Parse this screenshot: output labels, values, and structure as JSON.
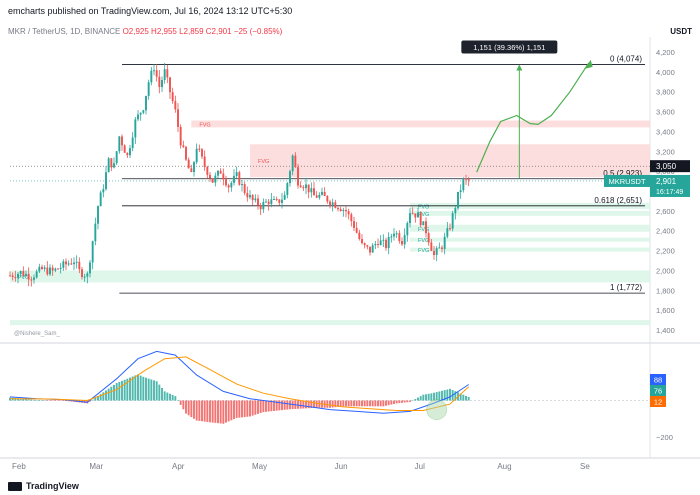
{
  "header": {
    "publisher": "emcharts published on TradingView.com, Jul 16, 2024 13:12 UTC+5:30",
    "symbol": "MKR / TetherUS, 1D, BINANCE",
    "open": "O2,925",
    "high": "H2,955",
    "low": "L2,859",
    "close": "C2,901",
    "change": "−25 (−0.85%)",
    "currency": "USDT"
  },
  "watermark": "@Nishere_Sam_",
  "footer": {
    "brand": "TradingView"
  },
  "colors": {
    "up": "#26a69a",
    "down": "#ef5350",
    "fvg_red": "#fbd8d8",
    "fvg_green": "#d9f5e6",
    "macd_line": "#2962ff",
    "signal_line": "#ff9800",
    "accent_green": "#4caf50"
  },
  "chart_data": [
    {
      "type": "candlestick",
      "title": "",
      "x_ticks": [
        "Feb",
        "Mar",
        "Apr",
        "May",
        "Jun",
        "Jul",
        "Aug",
        "Se"
      ],
      "y_ticks": [
        1400,
        1600,
        1800,
        2000,
        2200,
        2400,
        2600,
        2800,
        3000,
        3200,
        3400,
        3600,
        3800,
        4000,
        4200
      ],
      "ylim": [
        1300,
        4300
      ],
      "x_range_days": [
        0,
        240
      ],
      "month_start_days": [
        0,
        29,
        60,
        90,
        121,
        151,
        182,
        213
      ],
      "price_path": [
        [
          0,
          1950
        ],
        [
          4,
          1980
        ],
        [
          8,
          1940
        ],
        [
          12,
          2010
        ],
        [
          16,
          1990
        ],
        [
          20,
          2050
        ],
        [
          24,
          2100
        ],
        [
          26,
          1990
        ],
        [
          29,
          1950
        ],
        [
          31,
          2300
        ],
        [
          33,
          2650
        ],
        [
          35,
          2850
        ],
        [
          37,
          3100
        ],
        [
          39,
          3050
        ],
        [
          41,
          3350
        ],
        [
          44,
          3150
        ],
        [
          47,
          3500
        ],
        [
          50,
          3650
        ],
        [
          52,
          3900
        ],
        [
          54,
          4050
        ],
        [
          56,
          3850
        ],
        [
          58,
          4000
        ],
        [
          60,
          3800
        ],
        [
          62,
          3600
        ],
        [
          64,
          3300
        ],
        [
          66,
          3100
        ],
        [
          68,
          2950
        ],
        [
          70,
          3250
        ],
        [
          73,
          3050
        ],
        [
          76,
          2900
        ],
        [
          79,
          3000
        ],
        [
          82,
          2850
        ],
        [
          85,
          2950
        ],
        [
          88,
          2800
        ],
        [
          91,
          2700
        ],
        [
          94,
          2650
        ],
        [
          97,
          2700
        ],
        [
          100,
          2680
        ],
        [
          103,
          2750
        ],
        [
          106,
          3150
        ],
        [
          108,
          2900
        ],
        [
          111,
          2850
        ],
        [
          114,
          2750
        ],
        [
          117,
          2750
        ],
        [
          120,
          2700
        ],
        [
          123,
          2650
        ],
        [
          126,
          2600
        ],
        [
          129,
          2450
        ],
        [
          132,
          2250
        ],
        [
          135,
          2200
        ],
        [
          138,
          2300
        ],
        [
          141,
          2250
        ],
        [
          144,
          2400
        ],
        [
          147,
          2300
        ],
        [
          150,
          2600
        ],
        [
          153,
          2550
        ],
        [
          156,
          2400
        ],
        [
          159,
          2150
        ],
        [
          162,
          2250
        ],
        [
          165,
          2450
        ],
        [
          168,
          2750
        ],
        [
          170,
          2900
        ],
        [
          172,
          2901
        ]
      ],
      "levels": [
        {
          "label": "0 (4,074)",
          "value": 4074
        },
        {
          "label": "0.5 (2,923)",
          "value": 2923
        },
        {
          "label": "0.618 (2,651)",
          "value": 2651
        },
        {
          "label": "1 (1,772)",
          "value": 1772
        }
      ],
      "fvg_zones": [
        {
          "label": "FVG",
          "color": "red",
          "from": 3440,
          "to": 3510,
          "x0": 68,
          "x1": 240
        },
        {
          "label": "FVG",
          "color": "red",
          "from": 2940,
          "to": 3270,
          "x0": 90,
          "x1": 240
        },
        {
          "label": "FVG",
          "color": "green",
          "from": 2620,
          "to": 2680,
          "x0": 150,
          "x1": 240
        },
        {
          "label": "FVG",
          "color": "green",
          "from": 2550,
          "to": 2600,
          "x0": 150,
          "x1": 240
        },
        {
          "label": "FVG",
          "color": "green",
          "from": 2390,
          "to": 2460,
          "x0": 150,
          "x1": 240
        },
        {
          "label": "FVG",
          "color": "green",
          "from": 2290,
          "to": 2330,
          "x0": 150,
          "x1": 240
        },
        {
          "label": "FVG",
          "color": "green",
          "from": 2190,
          "to": 2230,
          "x0": 150,
          "x1": 240
        },
        {
          "label": "FVG",
          "color": "green",
          "from": 1880,
          "to": 2000,
          "x0": 0,
          "x1": 240
        },
        {
          "label": "",
          "color": "green",
          "from": 1450,
          "to": 1500,
          "x0": 0,
          "x1": 240
        }
      ],
      "projection": {
        "label": "1,151 (39.36%) 1,151",
        "from": 2923,
        "to": 4074,
        "day": 191,
        "path": [
          [
            175,
            2990
          ],
          [
            180,
            3300
          ],
          [
            184,
            3500
          ],
          [
            190,
            3560
          ],
          [
            195,
            3480
          ],
          [
            198,
            3470
          ],
          [
            203,
            3560
          ],
          [
            210,
            3800
          ],
          [
            217,
            4090
          ]
        ]
      },
      "price_labels": [
        {
          "text": "3,050",
          "value": 3050
        },
        {
          "text": "MKRUSDT",
          "value": 2901
        },
        {
          "text": "2,901",
          "value": 2901
        },
        {
          "text": "16:17:49",
          "value": 2810
        }
      ]
    },
    {
      "type": "macd",
      "title": "",
      "y_ticks": [
        -200
      ],
      "ylim": [
        -300,
        300
      ],
      "values_shown": [
        "88",
        "76",
        "12"
      ],
      "macd_path": [
        [
          0,
          20
        ],
        [
          10,
          10
        ],
        [
          20,
          5
        ],
        [
          29,
          -10
        ],
        [
          40,
          120
        ],
        [
          48,
          230
        ],
        [
          55,
          270
        ],
        [
          62,
          250
        ],
        [
          70,
          140
        ],
        [
          80,
          50
        ],
        [
          90,
          10
        ],
        [
          100,
          -10
        ],
        [
          110,
          -30
        ],
        [
          120,
          -50
        ],
        [
          130,
          -60
        ],
        [
          140,
          -70
        ],
        [
          150,
          -60
        ],
        [
          158,
          -20
        ],
        [
          165,
          20
        ],
        [
          172,
          88
        ]
      ],
      "signal_path": [
        [
          0,
          10
        ],
        [
          15,
          8
        ],
        [
          29,
          0
        ],
        [
          40,
          60
        ],
        [
          50,
          160
        ],
        [
          58,
          230
        ],
        [
          66,
          240
        ],
        [
          75,
          170
        ],
        [
          85,
          90
        ],
        [
          95,
          40
        ],
        [
          105,
          10
        ],
        [
          115,
          -15
        ],
        [
          125,
          -35
        ],
        [
          135,
          -45
        ],
        [
          145,
          -55
        ],
        [
          155,
          -55
        ],
        [
          165,
          -20
        ],
        [
          172,
          76
        ]
      ]
    }
  ]
}
